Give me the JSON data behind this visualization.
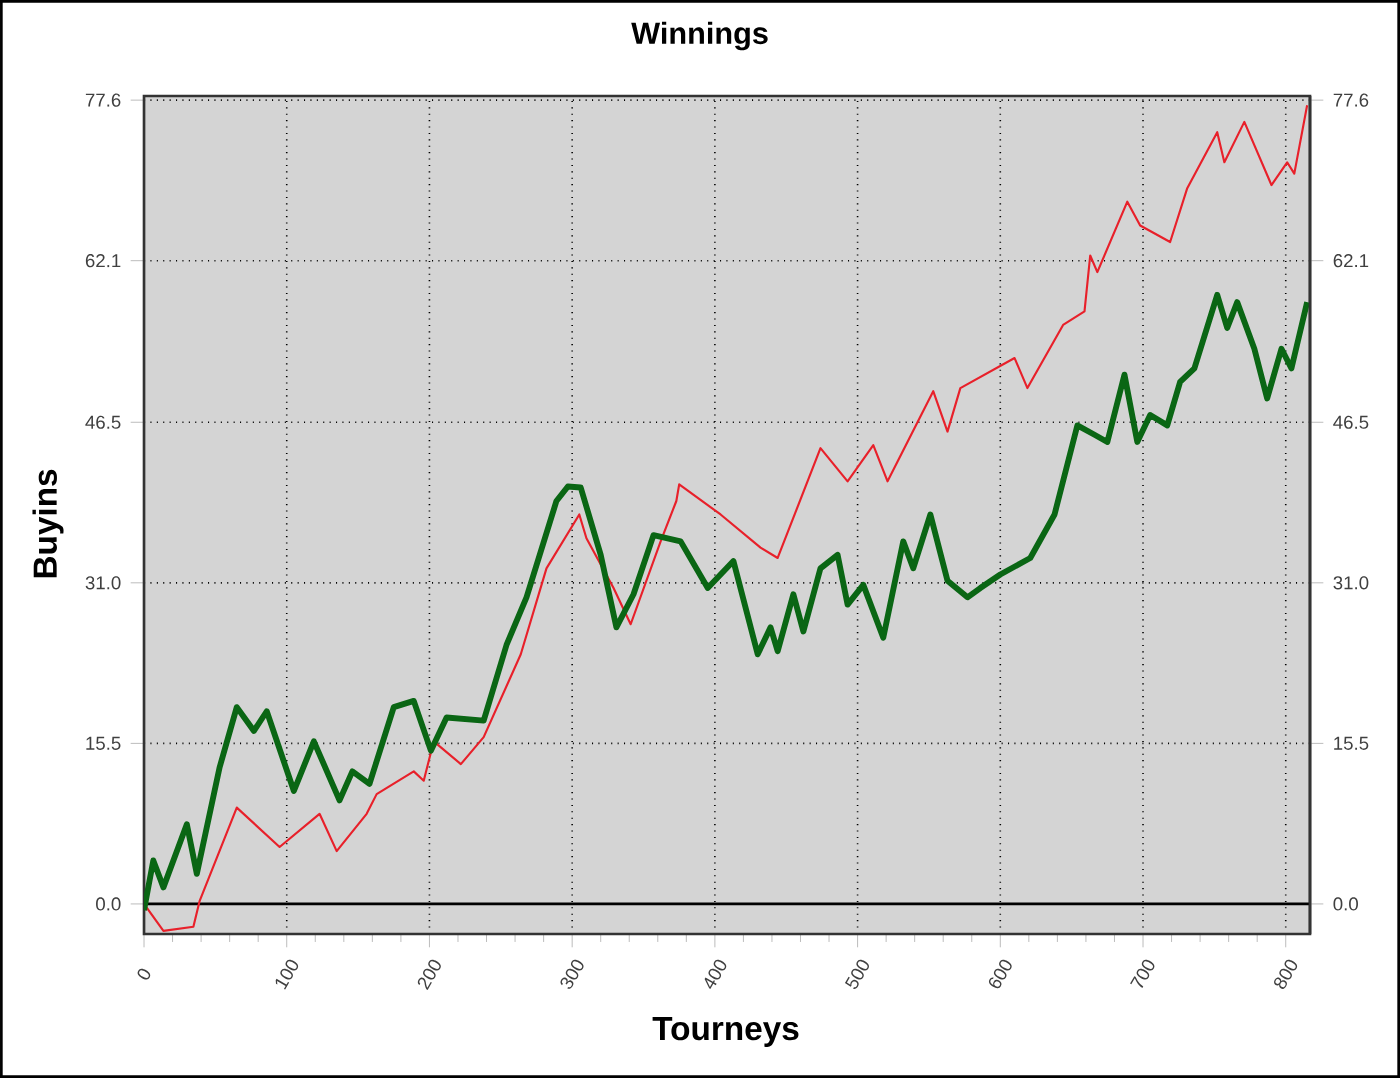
{
  "chart_data": {
    "type": "line",
    "title": "Winnings",
    "xlabel": "Tourneys",
    "ylabel": "Buyins",
    "xlim": [
      0,
      817
    ],
    "xticks": [
      0,
      100,
      200,
      300,
      400,
      500,
      600,
      700,
      800
    ],
    "ylim": [
      -2.9,
      78.0
    ],
    "yticks": [
      {
        "value": 0,
        "label": "0.0"
      },
      15.5,
      {
        "value": 31.0,
        "label": "31.0"
      },
      46.5,
      62.1,
      77.6
    ],
    "y2lim": [
      -2.9,
      78.0
    ],
    "y2ticks": [
      {
        "value": 0,
        "label": "0.0"
      },
      15.5,
      {
        "value": 31.0,
        "label": "31.0"
      },
      46.5,
      62.1,
      77.6
    ],
    "grid": true,
    "ref_lines": [
      {
        "axis": "y",
        "value": 0,
        "color": "#000000"
      }
    ],
    "series": [
      {
        "color": "#e8202a",
        "x": [
          0,
          13.6,
          34.6,
          39,
          65,
          95,
          123,
          135,
          156,
          163,
          189,
          196,
          203,
          222,
          238,
          264,
          282,
          305,
          310,
          329,
          341,
          362,
          373,
          375,
          404,
          432,
          444,
          474,
          493,
          511,
          521,
          553,
          563,
          572,
          610,
          619,
          644,
          659,
          663,
          668,
          689,
          698,
          719,
          731,
          752,
          757,
          771,
          790,
          801,
          806,
          815
        ],
        "values": [
          0,
          -2.6,
          -2.2,
          0.3,
          9.3,
          5.5,
          8.7,
          5.1,
          8.7,
          10.6,
          12.8,
          11.9,
          15.7,
          13.5,
          16.1,
          24.1,
          32.4,
          37.6,
          35.3,
          30.5,
          27.0,
          35.0,
          38.9,
          40.5,
          37.6,
          34.4,
          33.4,
          44.0,
          40.8,
          44.3,
          40.8,
          49.5,
          45.6,
          49.8,
          52.7,
          49.8,
          55.9,
          57.2,
          62.6,
          61.0,
          67.8,
          65.5,
          63.9,
          69.1,
          74.5,
          71.6,
          75.5,
          69.4,
          71.6,
          70.5,
          77.1
        ]
      },
      {
        "color": "#0a6614",
        "x": [
          0,
          6.5,
          13.6,
          30,
          37,
          53,
          65,
          77,
          86,
          105,
          119,
          137,
          146,
          158,
          175,
          189,
          201,
          212,
          238,
          254,
          268,
          289,
          297,
          306,
          320,
          331,
          343,
          357,
          376,
          395,
          413,
          430,
          439,
          444,
          455,
          462,
          474,
          486,
          493,
          504,
          518,
          532,
          539,
          551,
          563,
          577,
          586,
          600,
          621,
          638,
          654,
          666,
          675,
          687,
          696,
          705,
          717,
          726,
          736,
          752,
          759,
          766,
          778,
          787,
          797,
          804,
          815
        ],
        "values": [
          -0.6,
          4.2,
          1.6,
          7.7,
          2.9,
          13.2,
          19.0,
          16.7,
          18.6,
          10.9,
          15.7,
          10.0,
          12.8,
          11.6,
          19.0,
          19.6,
          14.8,
          18.0,
          17.7,
          25.0,
          29.6,
          38.9,
          40.3,
          40.2,
          33.7,
          26.7,
          29.9,
          35.6,
          35.0,
          30.5,
          33.1,
          24.1,
          26.7,
          24.4,
          29.9,
          26.3,
          32.4,
          33.7,
          28.9,
          30.8,
          25.7,
          35.0,
          32.4,
          37.6,
          31.2,
          29.6,
          30.5,
          31.8,
          33.4,
          37.6,
          46.2,
          45.3,
          44.6,
          51.1,
          44.6,
          47.2,
          46.2,
          50.4,
          51.7,
          58.8,
          55.6,
          58.1,
          53.6,
          48.8,
          53.6,
          51.7,
          58.1
        ]
      }
    ]
  }
}
